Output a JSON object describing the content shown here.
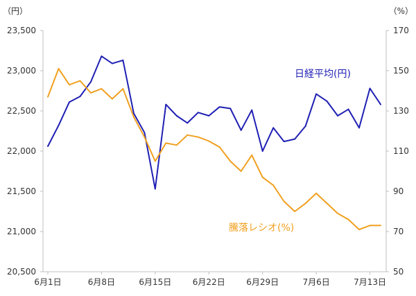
{
  "chart_data": {
    "type": "line",
    "y_left_unit": "（円）",
    "y_right_unit": "（%）",
    "x_tick_labels": [
      "6月1日",
      "6月8日",
      "6月15日",
      "6月22日",
      "6月29日",
      "7月6日",
      "7月13日"
    ],
    "y_left_ticks": [
      "20,500",
      "21,000",
      "21,500",
      "22,000",
      "22,500",
      "23,000",
      "23,500"
    ],
    "y_right_ticks": [
      "50",
      "70",
      "90",
      "110",
      "130",
      "150",
      "170"
    ],
    "y_left_range": [
      20500,
      23500
    ],
    "y_right_range": [
      50,
      170
    ],
    "grid": false,
    "series": [
      {
        "name": "日経平均(円)",
        "axis": "left",
        "color": "#1f1fb4",
        "x": [
          "6/1",
          "6/2",
          "6/3",
          "6/4",
          "6/5",
          "6/8",
          "6/9",
          "6/10",
          "6/11",
          "6/12",
          "6/15",
          "6/16",
          "6/17",
          "6/18",
          "6/19",
          "6/22",
          "6/23",
          "6/24",
          "6/25",
          "6/26",
          "6/29",
          "6/30",
          "7/1",
          "7/2",
          "7/3",
          "7/6",
          "7/7",
          "7/8",
          "7/9",
          "7/10",
          "7/13",
          "7/14"
        ],
        "values": [
          22060,
          22320,
          22610,
          22680,
          22860,
          23180,
          23090,
          23130,
          22470,
          22230,
          21530,
          22580,
          22440,
          22350,
          22480,
          22440,
          22550,
          22530,
          22260,
          22510,
          22000,
          22290,
          22120,
          22150,
          22310,
          22710,
          22620,
          22440,
          22520,
          22290,
          22780,
          22580
        ]
      },
      {
        "name": "騰落レシオ(%)",
        "axis": "right",
        "color": "#f0a020",
        "x": [
          "6/1",
          "6/2",
          "6/3",
          "6/4",
          "6/5",
          "6/8",
          "6/9",
          "6/10",
          "6/11",
          "6/12",
          "6/15",
          "6/16",
          "6/17",
          "6/18",
          "6/19",
          "6/22",
          "6/23",
          "6/24",
          "6/25",
          "6/26",
          "6/29",
          "6/30",
          "7/1",
          "7/2",
          "7/3",
          "7/6",
          "7/7",
          "7/8",
          "7/9",
          "7/10",
          "7/13",
          "7/14"
        ],
        "values": [
          137,
          151,
          143,
          145,
          139,
          141,
          136,
          141,
          127,
          117,
          105,
          114,
          113,
          118,
          117,
          115,
          112,
          105,
          100,
          108,
          97,
          93,
          85,
          80,
          84,
          89,
          84,
          79,
          76,
          71,
          73,
          73
        ]
      }
    ]
  }
}
